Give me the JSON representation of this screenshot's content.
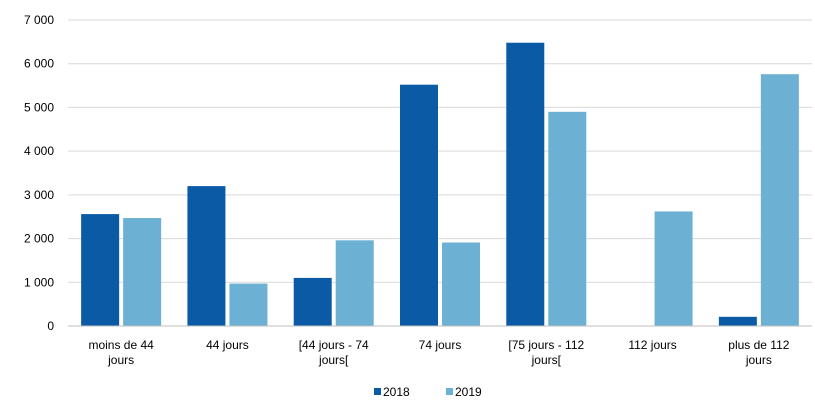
{
  "chart_data": {
    "type": "bar",
    "categories": [
      [
        "moins de 44",
        "jours"
      ],
      [
        "44 jours"
      ],
      [
        "[44 jours - 74",
        "jours["
      ],
      [
        "74 jours"
      ],
      [
        "[75 jours - 112",
        "jours["
      ],
      [
        "112 jours"
      ],
      [
        "plus de 112",
        "jours"
      ]
    ],
    "series": [
      {
        "name": "2018",
        "color": "#0a5aa5",
        "values": [
          2560,
          3200,
          1100,
          5520,
          6480,
          0,
          210
        ]
      },
      {
        "name": "2019",
        "color": "#6cb0d3",
        "values": [
          2470,
          970,
          1960,
          1910,
          4900,
          2620,
          5760
        ]
      }
    ],
    "ylim": [
      0,
      7000
    ],
    "yticks": [
      0,
      1000,
      2000,
      3000,
      4000,
      5000,
      6000,
      7000
    ],
    "ytick_labels": [
      "0",
      "1 000",
      "2 000",
      "3 000",
      "4 000",
      "5 000",
      "6 000",
      "7 000"
    ],
    "grid": "horizontal",
    "legend_position": "bottom-center",
    "title": "",
    "xlabel": "",
    "ylabel": ""
  }
}
